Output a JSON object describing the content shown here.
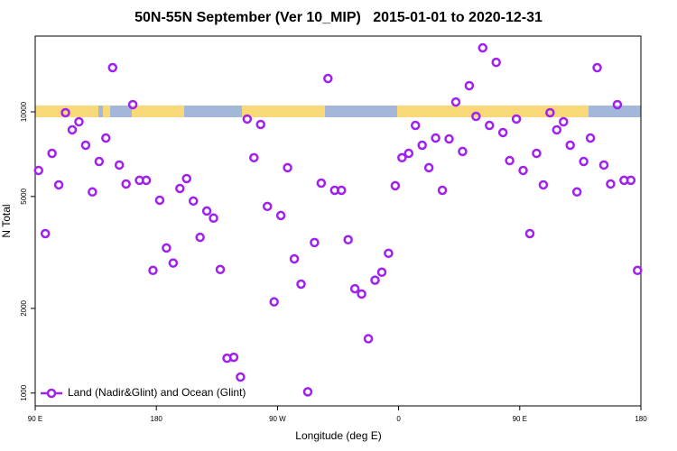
{
  "chart_data": {
    "type": "scatter",
    "title": "50N-55N September (Ver 10_MIP)   2015-01-01 to 2020-12-31",
    "x_label": "Longitude (deg E)",
    "y_label": "N Total",
    "xlim": [
      90,
      540
    ],
    "xticks": [
      {
        "value": 90,
        "label": "90 E"
      },
      180,
      {
        "value": 270,
        "label": "90 W"
      },
      {
        "value": 360,
        "label": "0"
      },
      {
        "value": 450,
        "label": "90 E"
      },
      {
        "value": 540,
        "label": "180"
      }
    ],
    "ylim": [
      900,
      18600
    ],
    "yticks": [
      1000,
      2000,
      5000,
      10000
    ],
    "log_y": true,
    "legend": "bottom-left",
    "x": [
      92.5,
      97.5,
      102.5,
      107.5,
      112.5,
      117.5,
      122.5,
      127.5,
      132.5,
      137.5,
      142.5,
      147.5,
      152.5,
      157.5,
      162.5,
      167.5,
      172.5,
      177.5,
      182.5,
      187.5,
      192.5,
      197.5,
      202.5,
      207.5,
      212.5,
      217.5,
      222.5,
      227.5,
      232.5,
      237.5,
      242.5,
      247.5,
      252.5,
      257.5,
      262.5,
      267.5,
      272.5,
      277.5,
      282.5,
      287.5,
      292.5,
      297.5,
      302.5,
      307.5,
      312.5,
      317.5,
      322.5,
      327.5,
      332.5,
      337.5,
      342.5,
      347.5,
      352.5,
      357.5,
      362.5,
      367.5,
      372.5,
      377.5,
      382.5,
      387.5,
      392.5,
      397.5,
      402.5,
      407.5,
      412.5,
      417.5,
      422.5,
      427.5,
      432.5,
      437.5,
      442.5,
      447.5,
      452.5,
      457.5,
      462.5,
      467.5,
      472.5,
      477.5,
      482.5,
      487.5,
      492.5,
      497.5,
      502.5,
      507.5,
      512.5,
      517.5,
      522.5,
      527.5,
      532.5,
      537.5
    ],
    "series": [
      {
        "name": "Land (Nadir&Glint) and Ocean (Glint)",
        "color": "#a020f0",
        "values": [
          6190,
          3690,
          7120,
          5500,
          9930,
          8630,
          9220,
          7610,
          5190,
          6660,
          8070,
          14360,
          6470,
          5540,
          10610,
          5710,
          5710,
          2730,
          4850,
          3280,
          2900,
          5340,
          5790,
          4820,
          3580,
          4440,
          4190,
          2750,
          1330,
          1340,
          1140,
          9430,
          6870,
          9020,
          4610,
          2110,
          4280,
          6330,
          3000,
          2440,
          1010,
          3430,
          5580,
          13140,
          5260,
          5260,
          3510,
          2350,
          2250,
          1560,
          2520,
          2690,
          3140,
          5460,
          6870,
          7120,
          8950,
          7610,
          6330,
          8070,
          5260,
          8010,
          10840,
          7230,
          12390,
          9640,
          16890,
          8950,
          15000,
          8440,
          6710,
          9430,
          6190,
          3690,
          7120,
          5500,
          9930,
          8630,
          9220,
          7610,
          5190,
          6660,
          8070,
          14360,
          6470,
          5540,
          10610,
          5710,
          5710,
          2730
        ]
      }
    ]
  }
}
